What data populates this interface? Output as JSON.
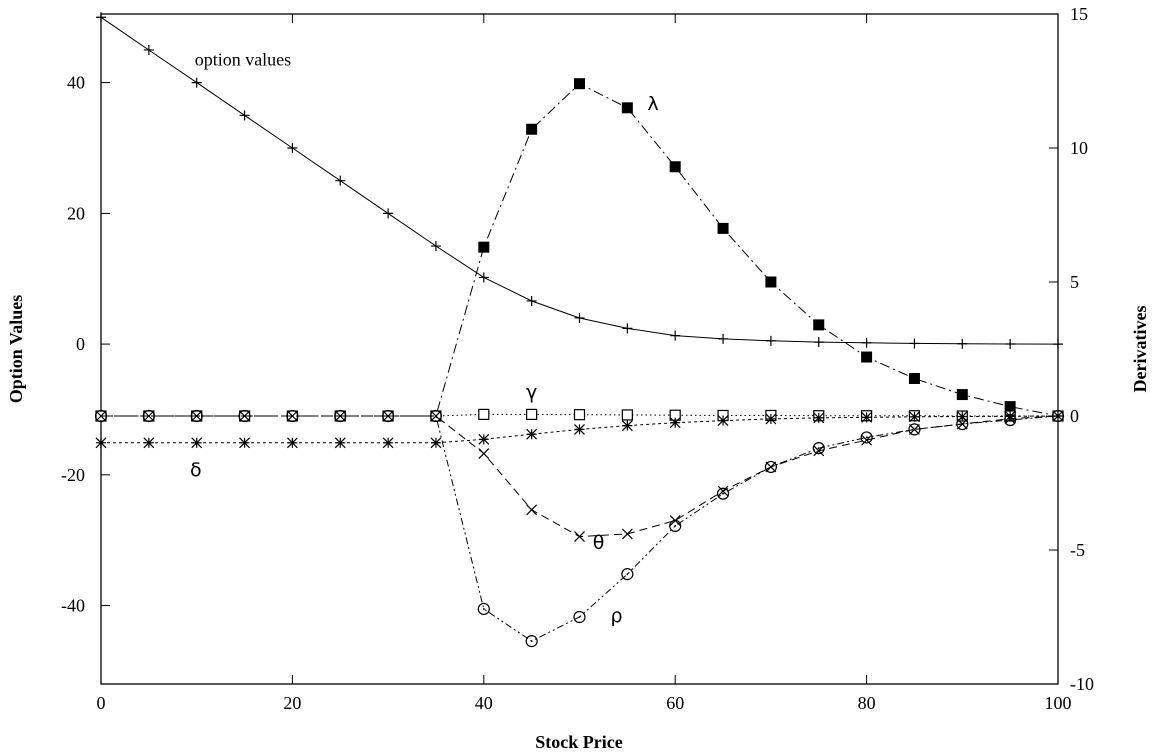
{
  "chart_data": {
    "type": "line",
    "xlabel": "Stock Price",
    "ylabel_left": "Option Values",
    "ylabel_right": "Derivatives",
    "xlim": [
      0,
      100
    ],
    "ylim_left": [
      -52,
      50.5
    ],
    "ylim_right": [
      -10,
      15
    ],
    "x_ticks": [
      0,
      20,
      40,
      60,
      80,
      100
    ],
    "y_ticks_left": [
      -40,
      -20,
      0,
      20,
      40
    ],
    "y_ticks_right": [
      -10,
      -5,
      0,
      5,
      10,
      15
    ],
    "grid": false,
    "x": [
      0,
      5,
      10,
      15,
      20,
      25,
      30,
      35,
      40,
      45,
      50,
      55,
      60,
      65,
      70,
      75,
      80,
      85,
      90,
      95,
      100
    ],
    "series": [
      {
        "name": "option values",
        "axis": "left",
        "marker": "plus",
        "dash": "solid",
        "values": [
          50,
          45,
          40,
          35,
          30,
          25,
          20,
          15,
          10.2,
          6.6,
          4.0,
          2.4,
          1.3,
          0.8,
          0.5,
          0.3,
          0.2,
          0.1,
          0.05,
          0.02,
          0.0
        ]
      },
      {
        "name": "λ",
        "axis": "right",
        "marker": "filled-square",
        "dash": "dash-dot",
        "values": [
          0,
          0,
          0,
          0,
          0,
          0,
          0,
          0,
          6.3,
          10.7,
          12.4,
          11.5,
          9.3,
          7.0,
          5.0,
          3.4,
          2.2,
          1.4,
          0.8,
          0.35,
          0.0
        ]
      },
      {
        "name": "γ",
        "axis": "right",
        "marker": "open-square",
        "dash": "dotted",
        "values": [
          0,
          0,
          0,
          0,
          0,
          0,
          0,
          0,
          0.06,
          0.06,
          0.05,
          0.04,
          0.03,
          0.02,
          0.02,
          0.01,
          0.01,
          0.01,
          0.0,
          0.0,
          0.0
        ]
      },
      {
        "name": "δ",
        "axis": "right",
        "marker": "asterisk",
        "dash": "short-dash",
        "values": [
          -1,
          -1,
          -1,
          -1,
          -1,
          -1,
          -1,
          -1,
          -0.87,
          -0.68,
          -0.5,
          -0.36,
          -0.25,
          -0.17,
          -0.11,
          -0.07,
          -0.05,
          -0.03,
          -0.02,
          -0.01,
          0.0
        ]
      },
      {
        "name": "θ",
        "axis": "right",
        "marker": "cross",
        "dash": "dashed",
        "values": [
          0,
          0,
          0,
          0,
          0,
          0,
          0,
          0,
          -1.4,
          -3.5,
          -4.5,
          -4.4,
          -3.9,
          -2.8,
          -1.9,
          -1.3,
          -0.9,
          -0.5,
          -0.3,
          -0.1,
          0.0
        ]
      },
      {
        "name": "ρ",
        "axis": "right",
        "marker": "open-circle",
        "dash": "dash-dot-dot",
        "values": [
          0,
          0,
          0,
          0,
          0,
          0,
          0,
          0,
          -7.2,
          -8.4,
          -7.5,
          -5.9,
          -4.1,
          -2.9,
          -1.9,
          -1.2,
          -0.8,
          -0.5,
          -0.3,
          -0.15,
          0.0
        ]
      }
    ],
    "annotations": [
      {
        "text": "option values",
        "series": "option values"
      },
      {
        "text": "λ",
        "series": "λ"
      },
      {
        "text": "γ",
        "series": "γ"
      },
      {
        "text": "δ",
        "series": "δ"
      },
      {
        "text": "θ",
        "series": "θ"
      },
      {
        "text": "ρ",
        "series": "ρ"
      }
    ]
  }
}
